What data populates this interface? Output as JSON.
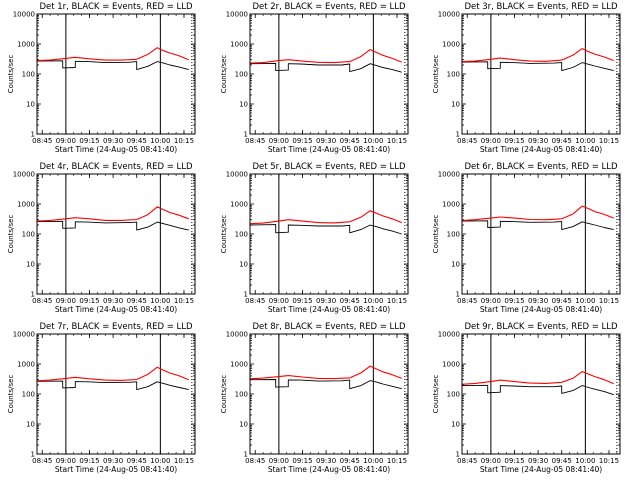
{
  "figure": {
    "background": "#ffffff",
    "axis_color": "#000000",
    "events_color": "#000000",
    "lld_color": "#ff0000"
  },
  "chart_data": [
    {
      "type": "line",
      "title": "Det 1r, BLACK = Events, RED = LLD",
      "xlabel": "Start Time (24-Aug-05 08:41:40)",
      "ylabel": "Counts/sec",
      "yscale": "log",
      "ylim": [
        1,
        10000
      ],
      "xlim": [
        "08:41:40",
        "10:22:00"
      ],
      "xticks": [
        "08:45",
        "09:00",
        "09:15",
        "09:30",
        "09:45",
        "10:00",
        "10:15"
      ],
      "yticks": [
        "1",
        "10",
        "100",
        "1000",
        "10000"
      ],
      "vlines": [
        "09:00",
        "10:00",
        "10:20"
      ],
      "series": [
        {
          "name": "Events",
          "color": "#000000",
          "x": [
            "08:41:40",
            "08:58",
            "08:58",
            "09:06",
            "09:06",
            "09:14",
            "09:25",
            "09:40",
            "09:45",
            "09:45",
            "09:52",
            "09:58",
            "10:02",
            "10:06",
            "10:12",
            "10:18"
          ],
          "y": [
            270,
            275,
            160,
            165,
            265,
            260,
            240,
            245,
            260,
            140,
            180,
            260,
            230,
            200,
            170,
            140
          ]
        },
        {
          "name": "LLD",
          "color": "#ff0000",
          "x": [
            "08:41:40",
            "08:50",
            "09:00",
            "09:06",
            "09:15",
            "09:25",
            "09:35",
            "09:45",
            "09:52",
            "09:58",
            "10:02",
            "10:06",
            "10:12",
            "10:18"
          ],
          "y": [
            280,
            290,
            330,
            360,
            320,
            290,
            290,
            310,
            450,
            750,
            600,
            500,
            400,
            300
          ]
        }
      ]
    },
    {
      "type": "line",
      "title": "Det 2r, BLACK = Events, RED = LLD",
      "xlabel": "Start Time (24-Aug-05 08:41:40)",
      "ylabel": "Counts/sec",
      "yscale": "log",
      "ylim": [
        1,
        10000
      ],
      "xlim": [
        "08:41:40",
        "10:22:00"
      ],
      "xticks": [
        "08:45",
        "09:00",
        "09:15",
        "09:30",
        "09:45",
        "10:00",
        "10:15"
      ],
      "yticks": [
        "1",
        "10",
        "100",
        "1000",
        "10000"
      ],
      "vlines": [
        "09:00",
        "10:00",
        "10:20"
      ],
      "series": [
        {
          "name": "Events",
          "color": "#000000",
          "x": [
            "08:41:40",
            "08:58",
            "08:58",
            "09:06",
            "09:06",
            "09:14",
            "09:25",
            "09:40",
            "09:45",
            "09:45",
            "09:52",
            "09:58",
            "10:02",
            "10:06",
            "10:12",
            "10:18"
          ],
          "y": [
            220,
            225,
            130,
            135,
            220,
            215,
            200,
            200,
            215,
            120,
            150,
            220,
            190,
            165,
            140,
            115
          ]
        },
        {
          "name": "LLD",
          "color": "#ff0000",
          "x": [
            "08:41:40",
            "08:50",
            "09:00",
            "09:06",
            "09:15",
            "09:25",
            "09:35",
            "09:45",
            "09:52",
            "09:58",
            "10:02",
            "10:06",
            "10:12",
            "10:18"
          ],
          "y": [
            230,
            240,
            280,
            300,
            270,
            245,
            240,
            260,
            380,
            650,
            520,
            420,
            330,
            250
          ]
        }
      ]
    },
    {
      "type": "line",
      "title": "Det 3r, BLACK = Events, RED = LLD",
      "xlabel": "Start Time (24-Aug-05 08:41:40)",
      "ylabel": "Counts/sec",
      "yscale": "log",
      "ylim": [
        1,
        10000
      ],
      "xlim": [
        "08:41:40",
        "10:22:00"
      ],
      "xticks": [
        "08:45",
        "09:00",
        "09:15",
        "09:30",
        "09:45",
        "10:00",
        "10:15"
      ],
      "yticks": [
        "1",
        "10",
        "100",
        "1000",
        "10000"
      ],
      "vlines": [
        "09:00",
        "10:00",
        "10:20"
      ],
      "series": [
        {
          "name": "Events",
          "color": "#000000",
          "x": [
            "08:41:40",
            "08:58",
            "08:58",
            "09:06",
            "09:06",
            "09:14",
            "09:25",
            "09:40",
            "09:45",
            "09:45",
            "09:52",
            "09:58",
            "10:02",
            "10:06",
            "10:12",
            "10:18"
          ],
          "y": [
            250,
            255,
            150,
            155,
            245,
            240,
            225,
            230,
            240,
            130,
            165,
            240,
            210,
            185,
            155,
            130
          ]
        },
        {
          "name": "LLD",
          "color": "#ff0000",
          "x": [
            "08:41:40",
            "08:50",
            "09:00",
            "09:06",
            "09:15",
            "09:25",
            "09:35",
            "09:45",
            "09:52",
            "09:58",
            "10:02",
            "10:06",
            "10:12",
            "10:18"
          ],
          "y": [
            260,
            270,
            310,
            340,
            300,
            270,
            265,
            290,
            420,
            700,
            560,
            460,
            370,
            280
          ]
        }
      ]
    },
    {
      "type": "line",
      "title": "Det 4r, BLACK = Events, RED = LLD",
      "xlabel": "Start Time (24-Aug-05 08:41:40)",
      "ylabel": "Counts/sec",
      "yscale": "log",
      "ylim": [
        1,
        10000
      ],
      "xlim": [
        "08:41:40",
        "10:22:00"
      ],
      "xticks": [
        "08:45",
        "09:00",
        "09:15",
        "09:30",
        "09:45",
        "10:00",
        "10:15"
      ],
      "yticks": [
        "1",
        "10",
        "100",
        "1000",
        "10000"
      ],
      "vlines": [
        "09:00",
        "10:00",
        "10:20"
      ],
      "series": [
        {
          "name": "Events",
          "color": "#000000",
          "x": [
            "08:41:40",
            "08:58",
            "08:58",
            "09:06",
            "09:06",
            "09:14",
            "09:25",
            "09:40",
            "09:45",
            "09:45",
            "09:52",
            "09:58",
            "10:02",
            "10:06",
            "10:12",
            "10:18"
          ],
          "y": [
            260,
            265,
            155,
            160,
            255,
            250,
            235,
            240,
            250,
            135,
            170,
            250,
            220,
            195,
            160,
            135
          ]
        },
        {
          "name": "LLD",
          "color": "#ff0000",
          "x": [
            "08:41:40",
            "08:50",
            "09:00",
            "09:06",
            "09:15",
            "09:25",
            "09:35",
            "09:45",
            "09:52",
            "09:58",
            "10:02",
            "10:06",
            "10:12",
            "10:18"
          ],
          "y": [
            270,
            285,
            320,
            350,
            320,
            285,
            285,
            305,
            440,
            800,
            650,
            520,
            420,
            320
          ]
        }
      ]
    },
    {
      "type": "line",
      "title": "Det 5r, BLACK = Events, RED = LLD",
      "xlabel": "Start Time (24-Aug-05 08:41:40)",
      "ylabel": "Counts/sec",
      "yscale": "log",
      "ylim": [
        1,
        10000
      ],
      "xlim": [
        "08:41:40",
        "10:22:00"
      ],
      "xticks": [
        "08:45",
        "09:00",
        "09:15",
        "09:30",
        "09:45",
        "10:00",
        "10:15"
      ],
      "yticks": [
        "1",
        "10",
        "100",
        "1000",
        "10000"
      ],
      "vlines": [
        "09:00",
        "10:00",
        "10:20"
      ],
      "series": [
        {
          "name": "Events",
          "color": "#000000",
          "x": [
            "08:41:40",
            "08:58",
            "08:58",
            "09:06",
            "09:06",
            "09:14",
            "09:25",
            "09:40",
            "09:45",
            "09:45",
            "09:52",
            "09:58",
            "10:02",
            "10:06",
            "10:12",
            "10:18"
          ],
          "y": [
            200,
            205,
            110,
            115,
            200,
            195,
            185,
            185,
            195,
            110,
            140,
            200,
            175,
            150,
            125,
            100
          ]
        },
        {
          "name": "LLD",
          "color": "#ff0000",
          "x": [
            "08:41:40",
            "08:50",
            "09:00",
            "09:06",
            "09:15",
            "09:25",
            "09:35",
            "09:45",
            "09:52",
            "09:58",
            "10:02",
            "10:06",
            "10:12",
            "10:18"
          ],
          "y": [
            220,
            230,
            270,
            300,
            270,
            240,
            235,
            255,
            360,
            600,
            490,
            400,
            320,
            240
          ]
        }
      ]
    },
    {
      "type": "line",
      "title": "Det 6r, BLACK = Events, RED = LLD",
      "xlabel": "Start Time (24-Aug-05 08:41:40)",
      "ylabel": "Counts/sec",
      "yscale": "log",
      "ylim": [
        1,
        10000
      ],
      "xlim": [
        "08:41:40",
        "10:22:00"
      ],
      "xticks": [
        "08:45",
        "09:00",
        "09:15",
        "09:30",
        "09:45",
        "10:00",
        "10:15"
      ],
      "yticks": [
        "1",
        "10",
        "100",
        "1000",
        "10000"
      ],
      "vlines": [
        "09:00",
        "10:00",
        "10:20"
      ],
      "series": [
        {
          "name": "Events",
          "color": "#000000",
          "x": [
            "08:41:40",
            "08:58",
            "08:58",
            "09:06",
            "09:06",
            "09:14",
            "09:25",
            "09:40",
            "09:45",
            "09:45",
            "09:52",
            "09:58",
            "10:02",
            "10:06",
            "10:12",
            "10:18"
          ],
          "y": [
            270,
            275,
            165,
            170,
            265,
            260,
            245,
            250,
            260,
            140,
            175,
            255,
            225,
            200,
            165,
            140
          ]
        },
        {
          "name": "LLD",
          "color": "#ff0000",
          "x": [
            "08:41:40",
            "08:50",
            "09:00",
            "09:06",
            "09:15",
            "09:25",
            "09:35",
            "09:45",
            "09:52",
            "09:58",
            "10:02",
            "10:06",
            "10:12",
            "10:18"
          ],
          "y": [
            280,
            300,
            340,
            370,
            340,
            305,
            300,
            320,
            460,
            850,
            700,
            560,
            450,
            340
          ]
        }
      ]
    },
    {
      "type": "line",
      "title": "Det 7r, BLACK = Events, RED = LLD",
      "xlabel": "Start Time (24-Aug-05 08:41:40)",
      "ylabel": "Counts/sec",
      "yscale": "log",
      "ylim": [
        1,
        10000
      ],
      "xlim": [
        "08:41:40",
        "10:22:00"
      ],
      "xticks": [
        "08:45",
        "09:00",
        "09:15",
        "09:30",
        "09:45",
        "10:00",
        "10:15"
      ],
      "yticks": [
        "1",
        "10",
        "100",
        "1000",
        "10000"
      ],
      "vlines": [
        "09:00",
        "10:00",
        "10:20"
      ],
      "series": [
        {
          "name": "Events",
          "color": "#000000",
          "x": [
            "08:41:40",
            "08:58",
            "08:58",
            "09:06",
            "09:06",
            "09:14",
            "09:25",
            "09:40",
            "09:45",
            "09:45",
            "09:52",
            "09:58",
            "10:02",
            "10:06",
            "10:12",
            "10:18"
          ],
          "y": [
            265,
            270,
            160,
            165,
            260,
            255,
            240,
            245,
            255,
            140,
            175,
            255,
            225,
            195,
            165,
            140
          ]
        },
        {
          "name": "LLD",
          "color": "#ff0000",
          "x": [
            "08:41:40",
            "08:50",
            "09:00",
            "09:06",
            "09:15",
            "09:25",
            "09:35",
            "09:45",
            "09:52",
            "09:58",
            "10:02",
            "10:06",
            "10:12",
            "10:18"
          ],
          "y": [
            275,
            290,
            330,
            360,
            320,
            290,
            285,
            305,
            450,
            780,
            620,
            500,
            400,
            300
          ]
        }
      ]
    },
    {
      "type": "line",
      "title": "Det 8r, BLACK = Events, RED = LLD",
      "xlabel": "Start Time (24-Aug-05 08:41:40)",
      "ylabel": "Counts/sec",
      "yscale": "log",
      "ylim": [
        1,
        10000
      ],
      "xlim": [
        "08:41:40",
        "10:22:00"
      ],
      "xticks": [
        "08:45",
        "09:00",
        "09:15",
        "09:30",
        "09:45",
        "10:00",
        "10:15"
      ],
      "yticks": [
        "1",
        "10",
        "100",
        "1000",
        "10000"
      ],
      "vlines": [
        "09:00",
        "10:00",
        "10:20"
      ],
      "series": [
        {
          "name": "Events",
          "color": "#000000",
          "x": [
            "08:41:40",
            "08:58",
            "08:58",
            "09:06",
            "09:06",
            "09:14",
            "09:25",
            "09:40",
            "09:45",
            "09:45",
            "09:52",
            "09:58",
            "10:02",
            "10:06",
            "10:12",
            "10:18"
          ],
          "y": [
            300,
            305,
            170,
            175,
            295,
            290,
            270,
            275,
            290,
            150,
            190,
            280,
            250,
            215,
            180,
            150
          ]
        },
        {
          "name": "LLD",
          "color": "#ff0000",
          "x": [
            "08:41:40",
            "08:50",
            "09:00",
            "09:06",
            "09:15",
            "09:25",
            "09:35",
            "09:45",
            "09:52",
            "09:58",
            "10:02",
            "10:06",
            "10:12",
            "10:18"
          ],
          "y": [
            320,
            340,
            380,
            410,
            370,
            330,
            325,
            345,
            500,
            850,
            680,
            550,
            440,
            330
          ]
        }
      ]
    },
    {
      "type": "line",
      "title": "Det 9r, BLACK = Events, RED = LLD",
      "xlabel": "Start Time (24-Aug-05 08:41:40)",
      "ylabel": "Counts/sec",
      "yscale": "log",
      "ylim": [
        1,
        10000
      ],
      "xlim": [
        "08:41:40",
        "10:22:00"
      ],
      "xticks": [
        "08:45",
        "09:00",
        "09:15",
        "09:30",
        "09:45",
        "10:00",
        "10:15"
      ],
      "yticks": [
        "1",
        "10",
        "100",
        "1000",
        "10000"
      ],
      "vlines": [
        "09:00",
        "10:00",
        "10:20"
      ],
      "series": [
        {
          "name": "Events",
          "color": "#000000",
          "x": [
            "08:41:40",
            "08:58",
            "08:58",
            "09:06",
            "09:06",
            "09:14",
            "09:25",
            "09:40",
            "09:45",
            "09:45",
            "09:52",
            "09:58",
            "10:02",
            "10:06",
            "10:12",
            "10:18"
          ],
          "y": [
            190,
            195,
            110,
            115,
            190,
            185,
            175,
            175,
            185,
            105,
            130,
            190,
            165,
            145,
            120,
            95
          ]
        },
        {
          "name": "LLD",
          "color": "#ff0000",
          "x": [
            "08:41:40",
            "08:50",
            "09:00",
            "09:06",
            "09:15",
            "09:25",
            "09:35",
            "09:45",
            "09:52",
            "09:58",
            "10:02",
            "10:06",
            "10:12",
            "10:18"
          ],
          "y": [
            210,
            225,
            260,
            290,
            260,
            230,
            225,
            245,
            330,
            560,
            460,
            380,
            300,
            220
          ]
        }
      ]
    }
  ]
}
